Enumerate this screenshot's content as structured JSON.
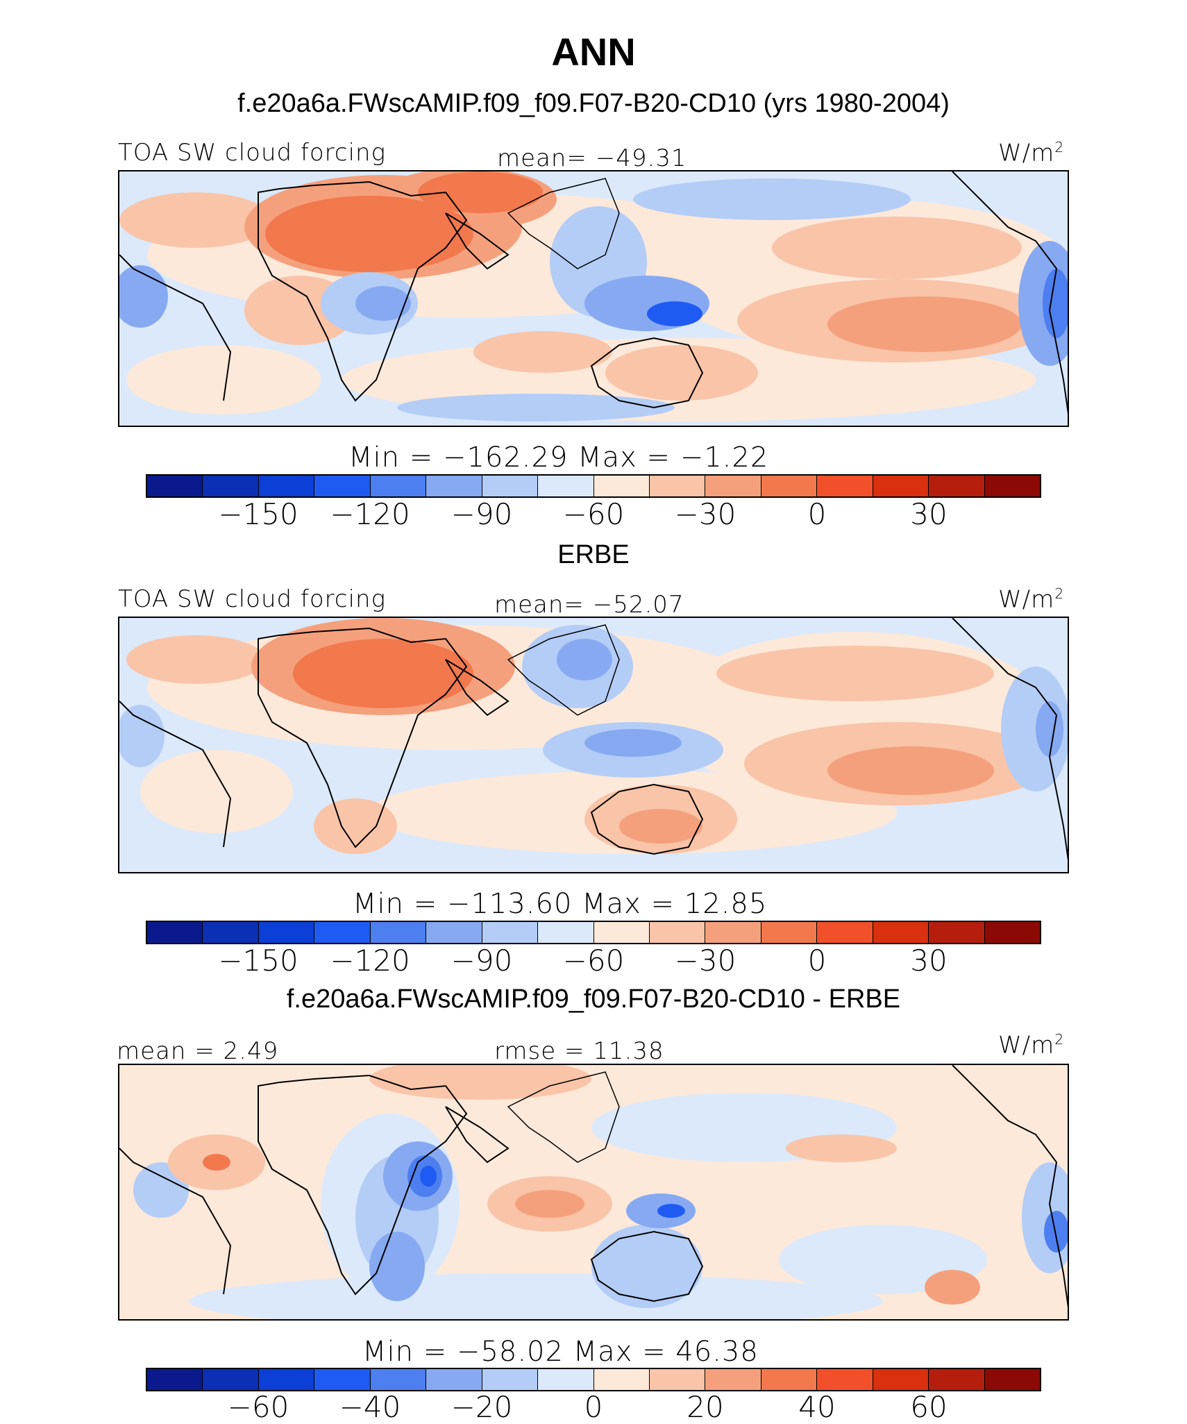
{
  "title": "ANN",
  "colors": [
    "#0a1a8c",
    "#0b2fb5",
    "#0c3fd6",
    "#1f5bf2",
    "#4d7ff0",
    "#86a9f2",
    "#b4cdf7",
    "#dbe9fb",
    "#fde9da",
    "#f9c4a8",
    "#f5a07c",
    "#f2784d",
    "#f2502a",
    "#d9300f",
    "#b51e0c",
    "#8c0a05"
  ],
  "panels": [
    {
      "title": "f.e20a6a.FWscAMIP.f09_f09.F07-B20-CD10 (yrs 1980-2004)",
      "left_label": "TOA SW cloud forcing",
      "center_label": "mean=  −49.31",
      "units": "W/m",
      "units_sup": "2",
      "min_max": "Min  =  −162.29  Max  =   −1.22",
      "ticks": [
        "−150",
        "−120",
        "−90",
        "−60",
        "−30",
        "0",
        "30"
      ]
    },
    {
      "title": "ERBE",
      "left_label": "TOA SW cloud forcing",
      "center_label": "mean=  −52.07",
      "units": "W/m",
      "units_sup": "2",
      "min_max": "Min  =  −113.60  Max  =   12.85",
      "ticks": [
        "−150",
        "−120",
        "−90",
        "−60",
        "−30",
        "0",
        "30"
      ]
    },
    {
      "title": "f.e20a6a.FWscAMIP.f09_f09.F07-B20-CD10 - ERBE",
      "left_label": "mean  =    2.49",
      "center_label": "rmse  =   11.38",
      "units": "W/m",
      "units_sup": "2",
      "min_max": "Min  =  −58.02  Max  =   46.38",
      "ticks": [
        "−60",
        "−40",
        "−20",
        "0",
        "20",
        "40",
        "60"
      ]
    }
  ]
}
